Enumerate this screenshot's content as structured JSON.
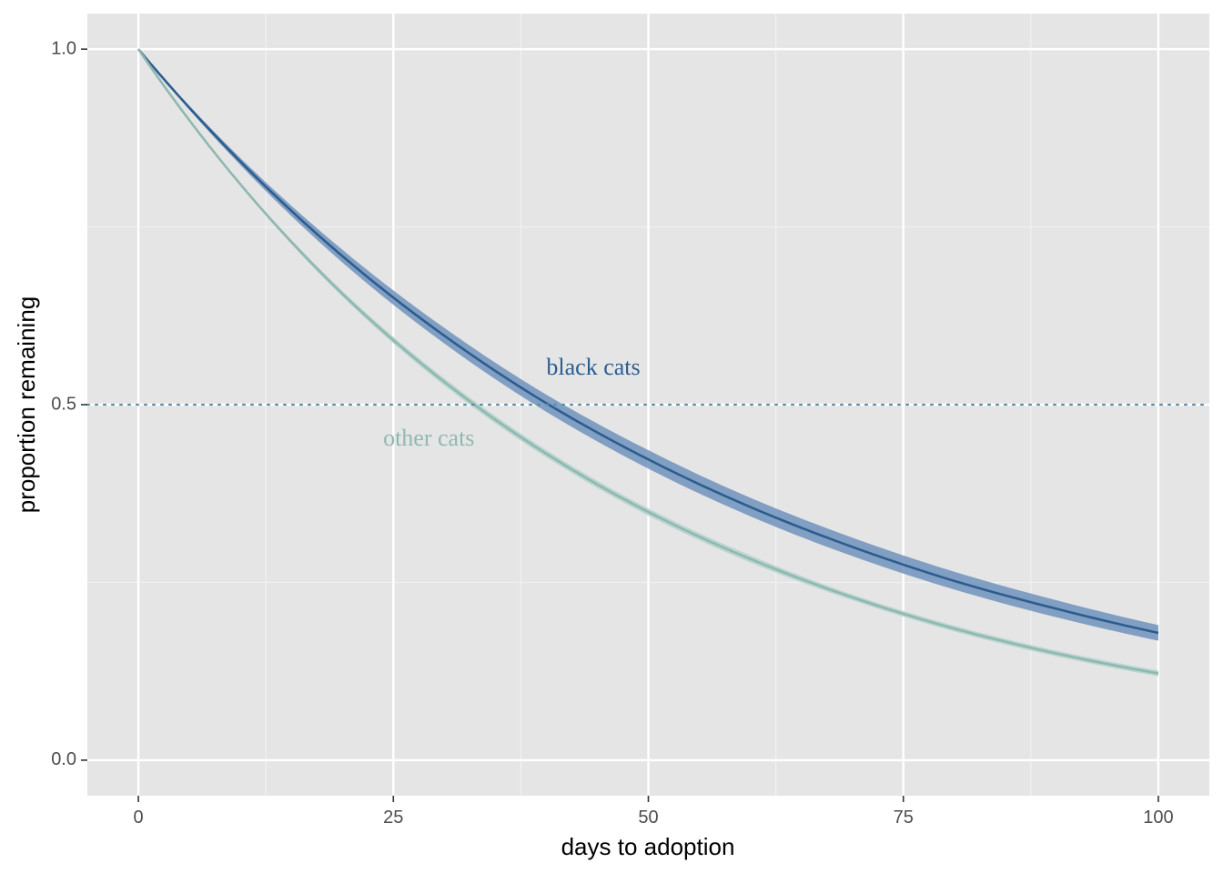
{
  "chart_data": {
    "type": "line",
    "title": "",
    "xlabel": "days to adoption",
    "ylabel": "proportion remaining",
    "xlim": [
      -5,
      105
    ],
    "ylim": [
      -0.05,
      1.05
    ],
    "x_ticks": [
      0,
      25,
      50,
      75,
      100
    ],
    "x_tick_labels": [
      "0",
      "25",
      "50",
      "75",
      "100"
    ],
    "y_ticks": [
      0,
      0.5,
      1
    ],
    "y_tick_labels": [
      "0.0",
      "0.5",
      "1.0"
    ],
    "grid": true,
    "legend": "none",
    "reference_line": {
      "y": 0.5,
      "style": "dotted",
      "color": "#5b8fa3"
    },
    "x": [
      0,
      10,
      20,
      30,
      40,
      50,
      60,
      70,
      80,
      90,
      100
    ],
    "series": [
      {
        "name": "black cats",
        "color": "#2c5d8f",
        "band_color": "#7093bd",
        "values": [
          1.0,
          0.842,
          0.709,
          0.597,
          0.502,
          0.423,
          0.356,
          0.3,
          0.252,
          0.213,
          0.179
        ],
        "lower": [
          1.0,
          0.837,
          0.7,
          0.586,
          0.49,
          0.41,
          0.343,
          0.287,
          0.24,
          0.201,
          0.168
        ],
        "upper": [
          1.0,
          0.847,
          0.718,
          0.608,
          0.514,
          0.436,
          0.369,
          0.313,
          0.265,
          0.225,
          0.19
        ]
      },
      {
        "name": "other cats",
        "color": "#8fb8b1",
        "band_color": "#b3d1cb",
        "values": [
          1.0,
          0.81,
          0.656,
          0.532,
          0.431,
          0.349,
          0.283,
          0.229,
          0.185,
          0.15,
          0.122
        ],
        "lower": [
          1.0,
          0.808,
          0.652,
          0.527,
          0.426,
          0.344,
          0.278,
          0.225,
          0.181,
          0.146,
          0.118
        ],
        "upper": [
          1.0,
          0.812,
          0.66,
          0.537,
          0.436,
          0.354,
          0.288,
          0.233,
          0.189,
          0.154,
          0.126
        ]
      }
    ],
    "annotations": [
      {
        "text": "black cats",
        "x": 40,
        "y": 0.55,
        "color": "#2c5d8f"
      },
      {
        "text": "other cats",
        "x": 24,
        "y": 0.45,
        "color": "#8fb8b1"
      }
    ]
  }
}
